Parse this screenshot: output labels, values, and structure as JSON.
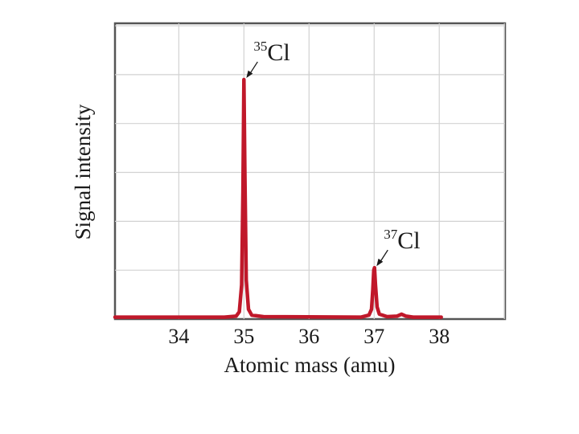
{
  "chart_data": {
    "type": "line",
    "xlabel": "Atomic mass (amu)",
    "ylabel": "Signal intensity",
    "xlim": [
      33.02,
      39.01
    ],
    "ylim": [
      0,
      6.05
    ],
    "x_ticks": [
      "34",
      "35",
      "36",
      "37",
      "38"
    ],
    "grid": true,
    "line_color": "#c0182a",
    "series": [
      {
        "points": [
          [
            33.02,
            0.04
          ],
          [
            34.7,
            0.04
          ],
          [
            34.88,
            0.06
          ],
          [
            34.93,
            0.15
          ],
          [
            34.965,
            0.7
          ],
          [
            34.985,
            2.6
          ],
          [
            35.0,
            4.9
          ],
          [
            35.015,
            3.0
          ],
          [
            35.035,
            0.8
          ],
          [
            35.07,
            0.2
          ],
          [
            35.12,
            0.08
          ],
          [
            35.3,
            0.05
          ],
          [
            36.8,
            0.04
          ],
          [
            36.92,
            0.08
          ],
          [
            36.96,
            0.2
          ],
          [
            36.98,
            0.6
          ],
          [
            36.995,
            1.0
          ],
          [
            37.005,
            1.05
          ],
          [
            37.02,
            0.7
          ],
          [
            37.045,
            0.25
          ],
          [
            37.08,
            0.1
          ],
          [
            37.2,
            0.05
          ],
          [
            37.35,
            0.06
          ],
          [
            37.42,
            0.1
          ],
          [
            37.49,
            0.06
          ],
          [
            37.6,
            0.04
          ],
          [
            38.03,
            0.04
          ]
        ]
      }
    ],
    "annotations": [
      {
        "mass": "35",
        "element": "Cl",
        "x": 35.0,
        "y": 4.9
      },
      {
        "mass": "37",
        "element": "Cl",
        "x": 37.0,
        "y": 1.05
      }
    ]
  }
}
